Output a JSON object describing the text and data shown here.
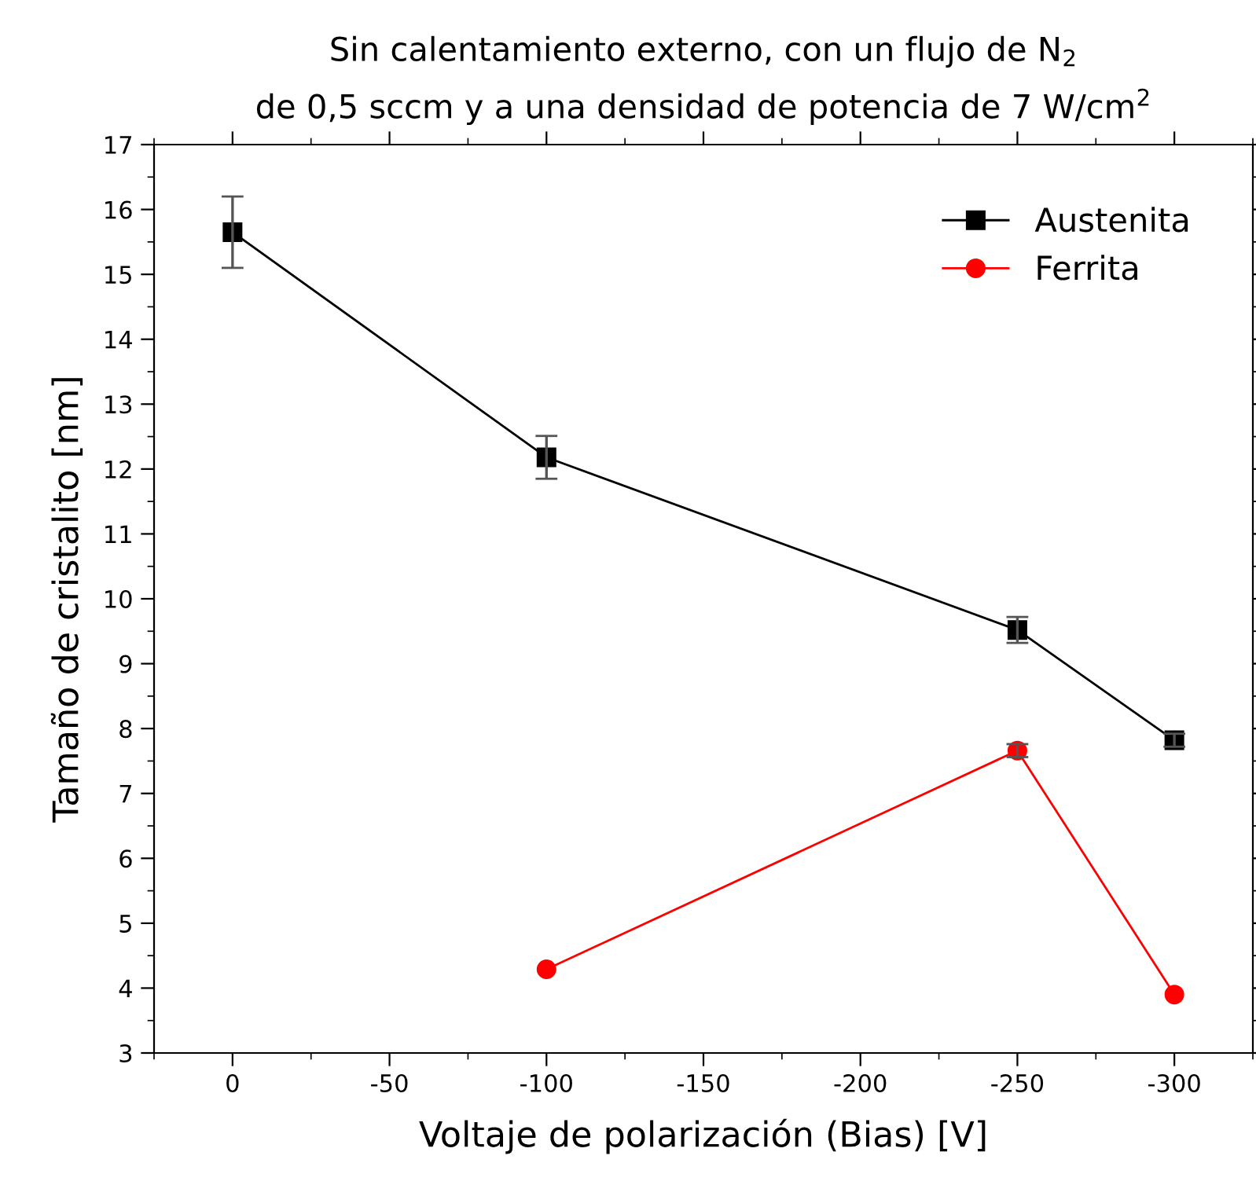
{
  "chart_data": {
    "type": "line",
    "title": "Sin calentamiento externo, con un flujo de N$_{2}$\nde 0,5 sccm y a una densidad de potencia de 7 W/cm$^{2}$",
    "xlabel": "Voltaje de polarización (Bias) [V]",
    "ylabel": "Tamaño de cristalito [nm]",
    "xlim": [
      25,
      -325
    ],
    "xticks": [
      0,
      -50,
      -100,
      -150,
      -200,
      -250,
      -300
    ],
    "ylim": [
      3,
      17
    ],
    "yticks": [
      3,
      4,
      5,
      6,
      7,
      8,
      9,
      10,
      11,
      12,
      13,
      14,
      15,
      16,
      17
    ],
    "grid": false,
    "legend": "top right",
    "series": [
      {
        "name": "Austenita",
        "color": "#000000",
        "marker": "square",
        "x": [
          0,
          -100,
          -250,
          -300
        ],
        "values": [
          15.65,
          12.18,
          9.52,
          7.82
        ],
        "errors": [
          0.55,
          0.33,
          0.2,
          0.1
        ]
      },
      {
        "name": "Ferrita",
        "color": "#ff0000",
        "marker": "circle",
        "x": [
          -100,
          -250,
          -300
        ],
        "values": [
          4.29,
          7.66,
          3.9
        ],
        "errors": [
          null,
          0.1,
          null
        ]
      }
    ]
  }
}
